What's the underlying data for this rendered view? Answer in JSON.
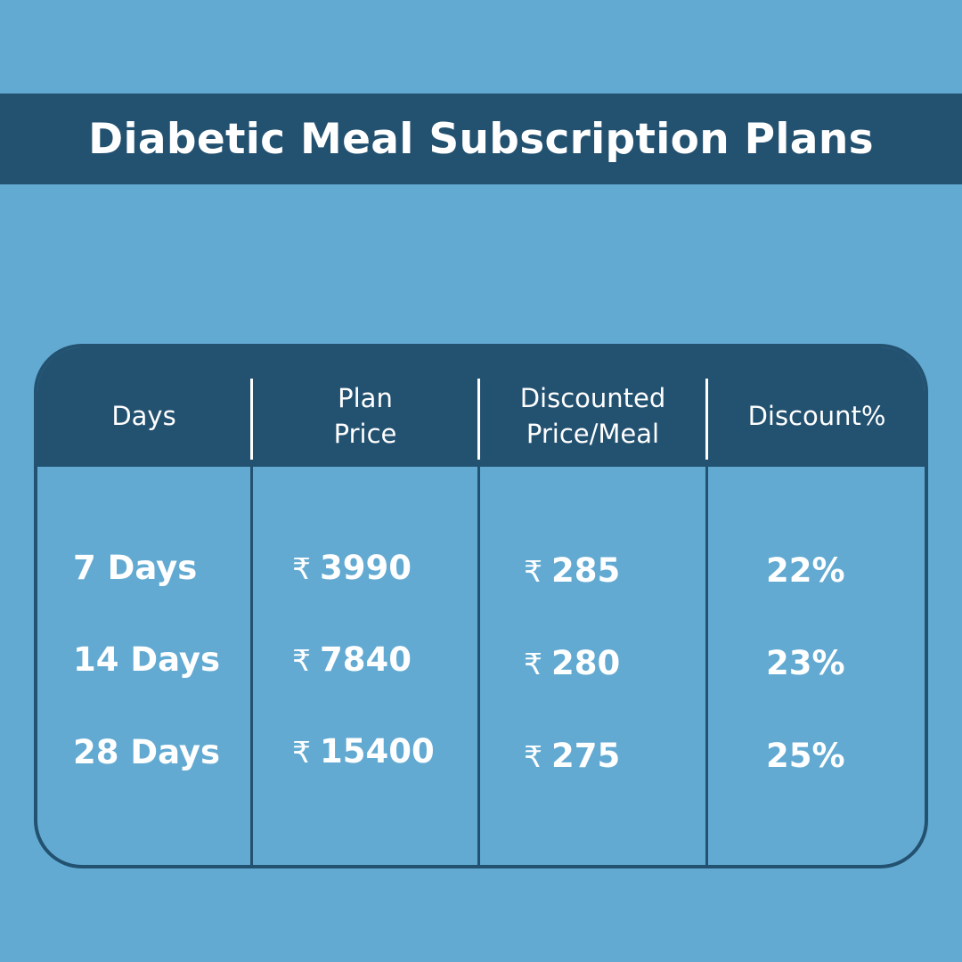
{
  "title": "Diabetic Meal Subscription Plans",
  "colors": {
    "background": "#62aad2",
    "band": "#235170",
    "text": "#ffffff"
  },
  "table": {
    "headers": [
      [
        "Days"
      ],
      [
        "Plan",
        "Price"
      ],
      [
        "Discounted",
        "Price/Meal"
      ],
      [
        "Discount%"
      ]
    ],
    "currency_symbol": "₹",
    "rows": [
      {
        "days": "7 Days",
        "plan_price": "3990",
        "price_per_meal": "285",
        "discount": "22%"
      },
      {
        "days": "14 Days",
        "plan_price": "7840",
        "price_per_meal": "280",
        "discount": "23%"
      },
      {
        "days": "28 Days",
        "plan_price": "15400",
        "price_per_meal": "275",
        "discount": "25%"
      }
    ]
  }
}
